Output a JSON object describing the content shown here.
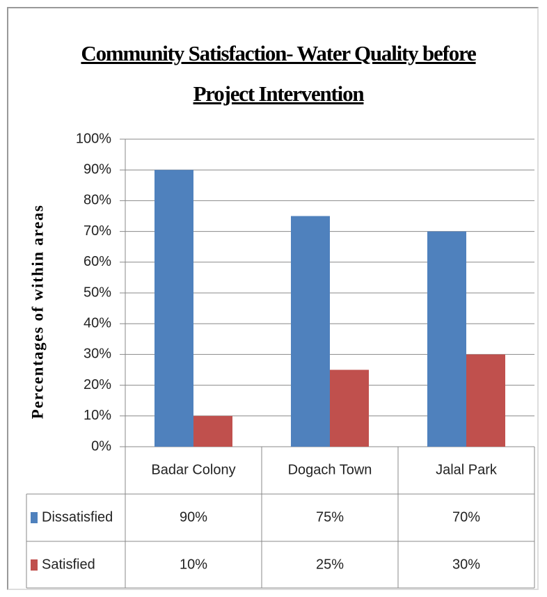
{
  "chart_data": {
    "type": "bar",
    "title": "Community Satisfaction- Water Quality before Project Intervention",
    "y_label": "Percentages of  within areas",
    "categories": [
      "Badar Colony",
      "Dogach Town",
      "Jalal Park"
    ],
    "series": [
      {
        "name": "Dissatisfied",
        "color": "#4f81bd",
        "values": [
          90,
          75,
          70
        ],
        "value_labels": [
          "90%",
          "75%",
          "70%"
        ]
      },
      {
        "name": "Satisfied",
        "color": "#c0504d",
        "values": [
          10,
          25,
          30
        ],
        "value_labels": [
          "10%",
          "25%",
          "30%"
        ]
      }
    ],
    "ylim": [
      0,
      100
    ],
    "yticks": [
      {
        "value": 0,
        "label": "0%"
      },
      {
        "value": 10,
        "label": "10%"
      },
      {
        "value": 20,
        "label": "20%"
      },
      {
        "value": 30,
        "label": "30%"
      },
      {
        "value": 40,
        "label": "40%"
      },
      {
        "value": 50,
        "label": "50%"
      },
      {
        "value": 60,
        "label": "60%"
      },
      {
        "value": 70,
        "label": "70%"
      },
      {
        "value": 80,
        "label": "80%"
      },
      {
        "value": 90,
        "label": "90%"
      },
      {
        "value": 100,
        "label": "100%"
      }
    ],
    "grid": true,
    "data_table": true
  }
}
